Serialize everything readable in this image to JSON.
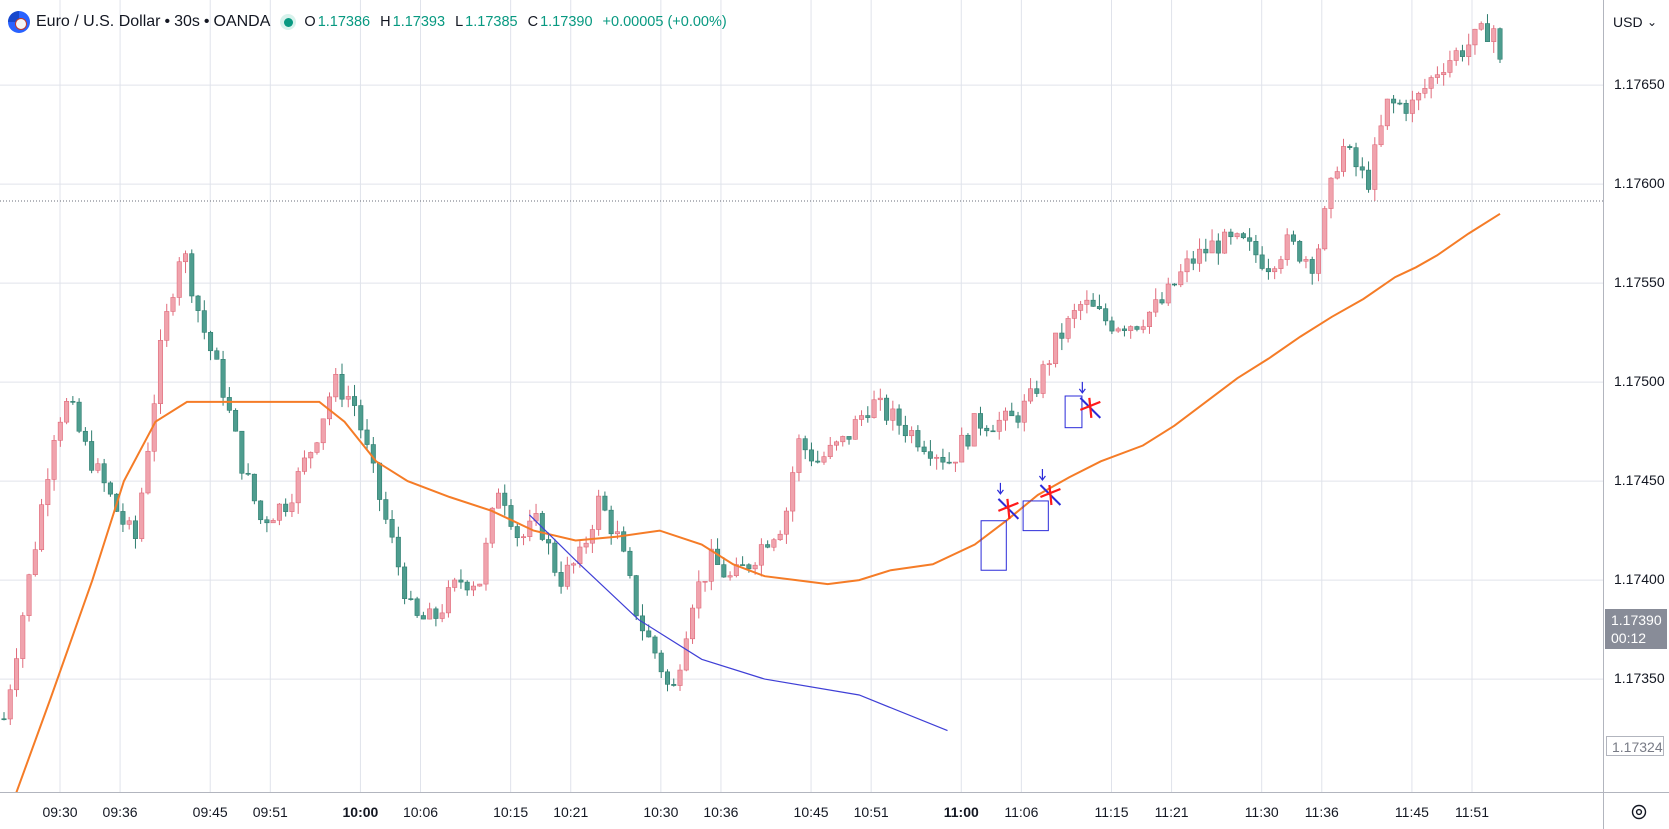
{
  "legend": {
    "symbol_title": "Euro / U.S. Dollar",
    "sep1": "•",
    "interval": "30s",
    "sep2": "•",
    "exchange": "OANDA",
    "open_key": "O",
    "open": "1.17386",
    "high_key": "H",
    "high": "1.17393",
    "low_key": "L",
    "low": "1.17385",
    "close_key": "C",
    "close": "1.17390",
    "change": "+0.00005 (+0.00%)"
  },
  "currency_selector": {
    "label": "USD",
    "chevron": "⌄"
  },
  "last_price_label": {
    "price": "1.17390",
    "countdown": "00:12"
  },
  "low_marker_label": "1.17324",
  "colors": {
    "up": "#f0a3ad",
    "up_border": "#e06a7a",
    "down": "#4e9d8f",
    "down_border": "#2e7d6f",
    "ma_line": "#f57c27",
    "curve": "#3f3fd6",
    "grid": "#e0e3eb",
    "marker_red": "#ff1a1a",
    "marker_blue": "#2b2bd9"
  },
  "chart_data": {
    "type": "candlestick",
    "symbol": "EUR/USD",
    "interval": "30s",
    "price_ticks": [
      "1.17650",
      "1.17600",
      "1.17550",
      "1.17500",
      "1.17450",
      "1.17400",
      "1.17350"
    ],
    "price_tick_values": [
      1.1765,
      1.176,
      1.1755,
      1.175,
      1.1745,
      1.174,
      1.1735
    ],
    "time_ticks": [
      {
        "label": "09:30",
        "bold": false
      },
      {
        "label": "09:36",
        "bold": false
      },
      {
        "label": "09:45",
        "bold": false
      },
      {
        "label": "09:51",
        "bold": false
      },
      {
        "label": "10:00",
        "bold": true
      },
      {
        "label": "10:06",
        "bold": false
      },
      {
        "label": "10:15",
        "bold": false
      },
      {
        "label": "10:21",
        "bold": false
      },
      {
        "label": "10:30",
        "bold": false
      },
      {
        "label": "10:36",
        "bold": false
      },
      {
        "label": "10:45",
        "bold": false
      },
      {
        "label": "10:51",
        "bold": false
      },
      {
        "label": "11:00",
        "bold": true
      },
      {
        "label": "11:06",
        "bold": false
      },
      {
        "label": "11:15",
        "bold": false
      },
      {
        "label": "11:21",
        "bold": false
      },
      {
        "label": "11:30",
        "bold": false
      },
      {
        "label": "11:36",
        "bold": false
      },
      {
        "label": "11:45",
        "bold": false
      },
      {
        "label": "11:51",
        "bold": false
      }
    ],
    "visible_range_minutes": [
      28.6,
      84.35
    ],
    "ylim": [
      1.17293,
      1.17693
    ],
    "close_path": [
      [
        28.6,
        1.1733
      ],
      [
        31.0,
        1.1742
      ],
      [
        32.5,
        1.1748
      ],
      [
        33.5,
        1.1749
      ],
      [
        34.5,
        1.1747
      ],
      [
        36.0,
        1.1745
      ],
      [
        37.5,
        1.1743
      ],
      [
        38.5,
        1.1742
      ],
      [
        40.5,
        1.1752
      ],
      [
        42.0,
        1.1757
      ],
      [
        43.5,
        1.1753
      ],
      [
        45.0,
        1.175
      ],
      [
        46.5,
        1.1746
      ],
      [
        48.0,
        1.1743
      ],
      [
        50.0,
        1.1744
      ],
      [
        52.0,
        1.1747
      ],
      [
        53.5,
        1.175
      ],
      [
        55.0,
        1.1749
      ],
      [
        57.0,
        1.1744
      ],
      [
        59.5,
        1.1738
      ],
      [
        61.0,
        1.1738
      ],
      [
        63.0,
        1.174
      ],
      [
        64.5,
        1.174
      ],
      [
        66.0,
        1.1745
      ],
      [
        67.5,
        1.1742
      ],
      [
        69.0,
        1.1743
      ],
      [
        70.5,
        1.174
      ],
      [
        72.0,
        1.1741
      ],
      [
        73.5,
        1.1744
      ],
      [
        75.0,
        1.1742
      ],
      [
        76.5,
        1.1738
      ],
      [
        78.0,
        1.1736
      ],
      [
        79.0,
        1.1734
      ],
      [
        80.5,
        1.1739
      ],
      [
        82.0,
        1.1741
      ],
      [
        83.5,
        1.174
      ],
      [
        85.0,
        1.1741
      ],
      [
        86.0,
        1.1742
      ],
      [
        87.5,
        1.1743
      ],
      [
        88.5,
        1.1747
      ],
      [
        90.0,
        1.1746
      ],
      [
        92.0,
        1.1747
      ],
      [
        94.0,
        1.1749
      ],
      [
        96.0,
        1.1748
      ],
      [
        98.0,
        1.1747
      ],
      [
        100.0,
        1.1746
      ],
      [
        102.0,
        1.1748
      ],
      [
        104.5,
        1.1748
      ],
      [
        106.0,
        1.1749
      ],
      [
        108.0,
        1.1752
      ],
      [
        110.0,
        1.1754
      ],
      [
        112.0,
        1.1753
      ],
      [
        114.0,
        1.1753
      ],
      [
        116.0,
        1.1754
      ],
      [
        118.0,
        1.1756
      ],
      [
        120.0,
        1.1757
      ],
      [
        122.0,
        1.1757
      ],
      [
        124.0,
        1.1756
      ],
      [
        125.5,
        1.1757
      ],
      [
        127.5,
        1.1756
      ],
      [
        129.5,
        1.1762
      ],
      [
        131.5,
        1.176
      ],
      [
        133.0,
        1.1764
      ],
      [
        135.0,
        1.1764
      ],
      [
        137.0,
        1.1766
      ],
      [
        139.0,
        1.1767
      ],
      [
        141.0,
        1.1768
      ],
      [
        141.5,
        1.1766
      ]
    ],
    "moving_average": [
      [
        28.6,
        1.1727
      ],
      [
        31.0,
        1.1734
      ],
      [
        33.0,
        1.174
      ],
      [
        34.5,
        1.1745
      ],
      [
        36.0,
        1.1748
      ],
      [
        37.5,
        1.1749
      ],
      [
        40.0,
        1.1749
      ],
      [
        42.5,
        1.1749
      ],
      [
        43.8,
        1.1749
      ],
      [
        45.0,
        1.1748
      ],
      [
        46.5,
        1.1746
      ],
      [
        48.0,
        1.1745
      ],
      [
        50.0,
        1.17442
      ],
      [
        52.0,
        1.17435
      ],
      [
        54.0,
        1.17425
      ],
      [
        56.0,
        1.1742
      ],
      [
        58.0,
        1.17422
      ],
      [
        60.0,
        1.17425
      ],
      [
        62.0,
        1.17418
      ],
      [
        63.5,
        1.17408
      ],
      [
        65.0,
        1.17402
      ],
      [
        66.5,
        1.174
      ],
      [
        68.0,
        1.17398
      ],
      [
        69.5,
        1.174
      ],
      [
        71.0,
        1.17405
      ],
      [
        73.0,
        1.17408
      ],
      [
        75.0,
        1.17418
      ],
      [
        76.5,
        1.1743
      ],
      [
        78.0,
        1.17443
      ],
      [
        79.5,
        1.17452
      ],
      [
        81.0,
        1.1746
      ],
      [
        83.0,
        1.17468
      ],
      [
        84.5,
        1.17478
      ],
      [
        86.0,
        1.1749
      ],
      [
        87.5,
        1.17502
      ],
      [
        89.0,
        1.17512
      ],
      [
        90.5,
        1.17523
      ],
      [
        92.0,
        1.17533
      ],
      [
        93.5,
        1.17542
      ],
      [
        95.0,
        1.17553
      ],
      [
        96.0,
        1.17558
      ],
      [
        97.0,
        1.17564
      ],
      [
        98.5,
        1.17575
      ],
      [
        100.0,
        1.17585
      ]
    ],
    "drawings": {
      "curve": [
        [
          53.8,
          1.17433
        ],
        [
          56.0,
          1.1741
        ],
        [
          59.0,
          1.1738
        ],
        [
          62.0,
          1.1736
        ],
        [
          65.0,
          1.1735
        ],
        [
          69.5,
          1.17342
        ],
        [
          73.7,
          1.17324
        ]
      ],
      "boxes": [
        {
          "t0": 75.3,
          "t1": 76.5,
          "p0": 1.17405,
          "p1": 1.1743
        },
        {
          "t0": 77.3,
          "t1": 78.5,
          "p0": 1.17425,
          "p1": 1.1744
        },
        {
          "t0": 79.3,
          "t1": 80.1,
          "p0": 1.17477,
          "p1": 1.17493
        }
      ],
      "markers": [
        {
          "t": 76.6,
          "p": 1.17436
        },
        {
          "t": 78.6,
          "p": 1.17443
        },
        {
          "t": 80.5,
          "p": 1.17487
        }
      ]
    }
  }
}
